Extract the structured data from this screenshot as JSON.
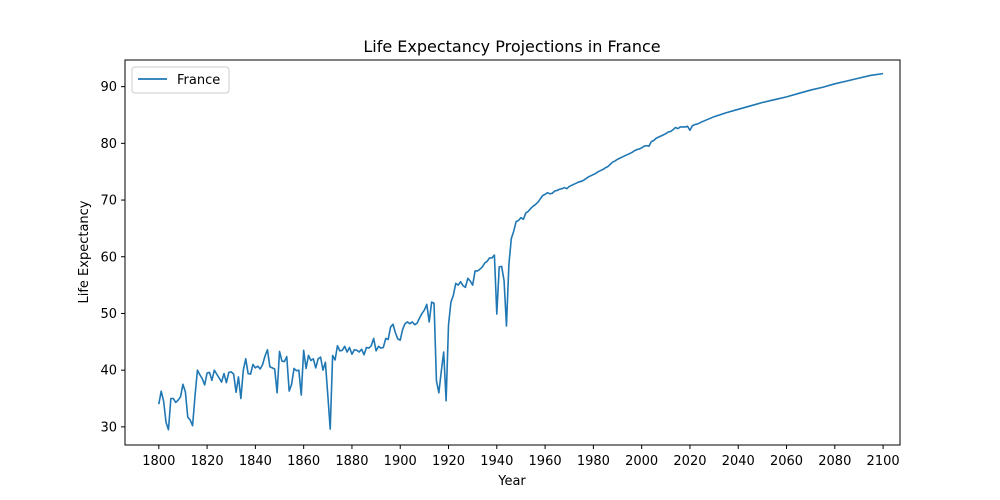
{
  "chart_data": {
    "type": "line",
    "title": "Life Expectancy Projections in France",
    "xlabel": "Year",
    "ylabel": "Life Expectancy",
    "xlim": [
      1786,
      2107
    ],
    "ylim": [
      26.8,
      94.7
    ],
    "xticks": [
      1800,
      1820,
      1840,
      1860,
      1880,
      1900,
      1920,
      1940,
      1960,
      1980,
      2000,
      2020,
      2040,
      2060,
      2080,
      2100
    ],
    "yticks": [
      30,
      40,
      50,
      60,
      70,
      80,
      90
    ],
    "grid": false,
    "legend": "top-left",
    "series": [
      {
        "name": "France",
        "color": "#1f77b4",
        "points": [
          [
            1800,
            34.0
          ],
          [
            1801,
            36.3
          ],
          [
            1802,
            34.5
          ],
          [
            1803,
            30.8
          ],
          [
            1804,
            29.5
          ],
          [
            1805,
            35.0
          ],
          [
            1806,
            35.0
          ],
          [
            1807,
            34.3
          ],
          [
            1808,
            34.7
          ],
          [
            1809,
            35.3
          ],
          [
            1810,
            37.5
          ],
          [
            1811,
            36.2
          ],
          [
            1812,
            31.7
          ],
          [
            1813,
            31.2
          ],
          [
            1814,
            30.2
          ],
          [
            1815,
            35.5
          ],
          [
            1816,
            40.0
          ],
          [
            1817,
            39.2
          ],
          [
            1818,
            38.5
          ],
          [
            1819,
            37.4
          ],
          [
            1820,
            39.5
          ],
          [
            1821,
            39.6
          ],
          [
            1822,
            38.2
          ],
          [
            1823,
            40.0
          ],
          [
            1824,
            39.3
          ],
          [
            1825,
            38.6
          ],
          [
            1826,
            37.9
          ],
          [
            1827,
            39.4
          ],
          [
            1828,
            37.8
          ],
          [
            1829,
            39.6
          ],
          [
            1830,
            39.7
          ],
          [
            1831,
            39.3
          ],
          [
            1832,
            36.1
          ],
          [
            1833,
            38.8
          ],
          [
            1834,
            35.0
          ],
          [
            1835,
            40.0
          ],
          [
            1836,
            42.0
          ],
          [
            1837,
            39.4
          ],
          [
            1838,
            39.3
          ],
          [
            1839,
            41.0
          ],
          [
            1840,
            40.4
          ],
          [
            1841,
            40.7
          ],
          [
            1842,
            40.2
          ],
          [
            1843,
            41.0
          ],
          [
            1844,
            42.5
          ],
          [
            1845,
            43.6
          ],
          [
            1846,
            40.6
          ],
          [
            1847,
            40.4
          ],
          [
            1848,
            40.2
          ],
          [
            1849,
            36.0
          ],
          [
            1850,
            43.3
          ],
          [
            1851,
            41.6
          ],
          [
            1852,
            41.5
          ],
          [
            1853,
            42.4
          ],
          [
            1854,
            36.3
          ],
          [
            1855,
            37.5
          ],
          [
            1856,
            40.3
          ],
          [
            1857,
            39.9
          ],
          [
            1858,
            40.0
          ],
          [
            1859,
            35.6
          ],
          [
            1860,
            43.5
          ],
          [
            1861,
            40.3
          ],
          [
            1862,
            42.6
          ],
          [
            1863,
            41.7
          ],
          [
            1864,
            42.0
          ],
          [
            1865,
            40.4
          ],
          [
            1866,
            42.0
          ],
          [
            1867,
            42.3
          ],
          [
            1868,
            40.0
          ],
          [
            1869,
            41.4
          ],
          [
            1870,
            35.6
          ],
          [
            1871,
            29.6
          ],
          [
            1872,
            42.6
          ],
          [
            1873,
            41.8
          ],
          [
            1874,
            44.3
          ],
          [
            1875,
            43.4
          ],
          [
            1876,
            43.5
          ],
          [
            1877,
            44.2
          ],
          [
            1878,
            43.2
          ],
          [
            1879,
            44.0
          ],
          [
            1880,
            42.8
          ],
          [
            1881,
            43.6
          ],
          [
            1882,
            43.5
          ],
          [
            1883,
            43.2
          ],
          [
            1884,
            43.7
          ],
          [
            1885,
            42.7
          ],
          [
            1886,
            44.0
          ],
          [
            1887,
            43.9
          ],
          [
            1888,
            44.3
          ],
          [
            1889,
            45.6
          ],
          [
            1890,
            43.4
          ],
          [
            1891,
            44.2
          ],
          [
            1892,
            43.9
          ],
          [
            1893,
            44.0
          ],
          [
            1894,
            45.6
          ],
          [
            1895,
            45.4
          ],
          [
            1896,
            47.6
          ],
          [
            1897,
            48.1
          ],
          [
            1898,
            46.6
          ],
          [
            1899,
            45.5
          ],
          [
            1900,
            45.3
          ],
          [
            1901,
            47.2
          ],
          [
            1902,
            48.2
          ],
          [
            1903,
            48.5
          ],
          [
            1904,
            48.2
          ],
          [
            1905,
            48.5
          ],
          [
            1906,
            48.0
          ],
          [
            1907,
            48.3
          ],
          [
            1908,
            49.2
          ],
          [
            1909,
            50.0
          ],
          [
            1910,
            50.6
          ],
          [
            1911,
            51.6
          ],
          [
            1912,
            48.5
          ],
          [
            1913,
            52.0
          ],
          [
            1914,
            51.8
          ],
          [
            1915,
            38.1
          ],
          [
            1916,
            36.0
          ],
          [
            1917,
            39.8
          ],
          [
            1918,
            43.2
          ],
          [
            1919,
            34.6
          ],
          [
            1920,
            48.0
          ],
          [
            1921,
            52.0
          ],
          [
            1922,
            53.2
          ],
          [
            1923,
            55.3
          ],
          [
            1924,
            55.0
          ],
          [
            1925,
            55.6
          ],
          [
            1926,
            54.9
          ],
          [
            1927,
            54.6
          ],
          [
            1928,
            56.2
          ],
          [
            1929,
            55.7
          ],
          [
            1930,
            55.0
          ],
          [
            1931,
            57.5
          ],
          [
            1932,
            57.5
          ],
          [
            1933,
            57.8
          ],
          [
            1934,
            58.2
          ],
          [
            1935,
            58.9
          ],
          [
            1936,
            59.2
          ],
          [
            1937,
            59.8
          ],
          [
            1938,
            59.8
          ],
          [
            1939,
            60.3
          ],
          [
            1940,
            49.9
          ],
          [
            1941,
            58.2
          ],
          [
            1942,
            58.3
          ],
          [
            1943,
            55.8
          ],
          [
            1944,
            47.8
          ],
          [
            1945,
            58.6
          ],
          [
            1946,
            63.2
          ],
          [
            1947,
            64.5
          ],
          [
            1948,
            66.2
          ],
          [
            1949,
            66.4
          ],
          [
            1950,
            66.9
          ],
          [
            1951,
            66.6
          ],
          [
            1952,
            67.7
          ],
          [
            1953,
            68.0
          ],
          [
            1954,
            68.5
          ],
          [
            1955,
            68.9
          ],
          [
            1956,
            69.2
          ],
          [
            1957,
            69.6
          ],
          [
            1958,
            70.2
          ],
          [
            1959,
            70.8
          ],
          [
            1960,
            71.0
          ],
          [
            1961,
            71.3
          ],
          [
            1962,
            71.1
          ],
          [
            1963,
            71.2
          ],
          [
            1964,
            71.6
          ],
          [
            1965,
            71.7
          ],
          [
            1966,
            71.9
          ],
          [
            1967,
            72.0
          ],
          [
            1968,
            72.2
          ],
          [
            1969,
            72.0
          ],
          [
            1970,
            72.4
          ],
          [
            1971,
            72.6
          ],
          [
            1972,
            72.8
          ],
          [
            1973,
            73.0
          ],
          [
            1974,
            73.2
          ],
          [
            1975,
            73.3
          ],
          [
            1976,
            73.5
          ],
          [
            1977,
            73.8
          ],
          [
            1978,
            74.1
          ],
          [
            1979,
            74.3
          ],
          [
            1980,
            74.5
          ],
          [
            1981,
            74.7
          ],
          [
            1982,
            75.0
          ],
          [
            1983,
            75.2
          ],
          [
            1984,
            75.4
          ],
          [
            1985,
            75.7
          ],
          [
            1986,
            75.9
          ],
          [
            1987,
            76.3
          ],
          [
            1988,
            76.7
          ],
          [
            1989,
            76.9
          ],
          [
            1990,
            77.2
          ],
          [
            1991,
            77.4
          ],
          [
            1992,
            77.6
          ],
          [
            1993,
            77.8
          ],
          [
            1994,
            78.0
          ],
          [
            1995,
            78.2
          ],
          [
            1996,
            78.4
          ],
          [
            1997,
            78.7
          ],
          [
            1998,
            78.9
          ],
          [
            1999,
            79.0
          ],
          [
            2000,
            79.2
          ],
          [
            2001,
            79.5
          ],
          [
            2002,
            79.6
          ],
          [
            2003,
            79.5
          ],
          [
            2004,
            80.3
          ],
          [
            2005,
            80.5
          ],
          [
            2006,
            80.9
          ],
          [
            2007,
            81.1
          ],
          [
            2008,
            81.3
          ],
          [
            2009,
            81.5
          ],
          [
            2010,
            81.7
          ],
          [
            2011,
            82.0
          ],
          [
            2012,
            82.1
          ],
          [
            2013,
            82.4
          ],
          [
            2014,
            82.8
          ],
          [
            2015,
            82.6
          ],
          [
            2016,
            82.9
          ],
          [
            2017,
            82.9
          ],
          [
            2018,
            82.9
          ],
          [
            2019,
            83.0
          ],
          [
            2020,
            82.3
          ],
          [
            2021,
            83.1
          ],
          [
            2022,
            83.3
          ],
          [
            2023,
            83.4
          ],
          [
            2024,
            83.6
          ],
          [
            2025,
            83.8
          ],
          [
            2030,
            84.7
          ],
          [
            2035,
            85.4
          ],
          [
            2040,
            86.0
          ],
          [
            2045,
            86.6
          ],
          [
            2050,
            87.2
          ],
          [
            2055,
            87.7
          ],
          [
            2060,
            88.2
          ],
          [
            2065,
            88.8
          ],
          [
            2070,
            89.4
          ],
          [
            2075,
            89.9
          ],
          [
            2080,
            90.5
          ],
          [
            2085,
            91.0
          ],
          [
            2090,
            91.5
          ],
          [
            2095,
            92.0
          ],
          [
            2100,
            92.3
          ]
        ]
      }
    ]
  }
}
